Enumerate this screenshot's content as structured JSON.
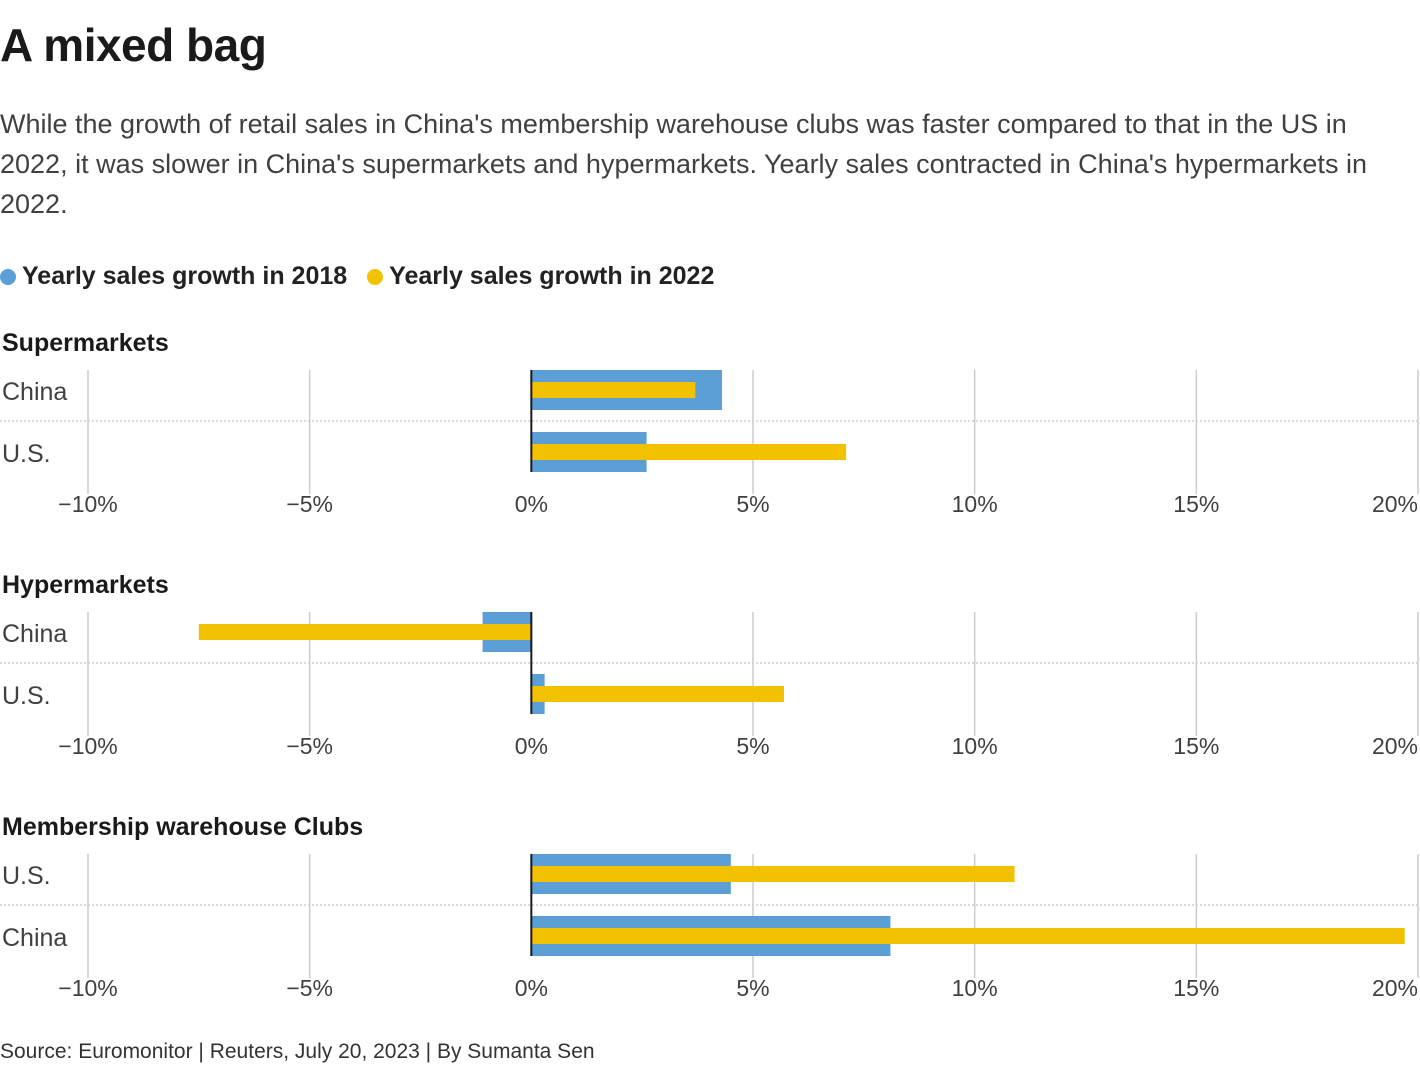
{
  "title": "A mixed bag",
  "subtitle": "While the growth of retail sales in China's membership warehouse clubs was faster compared to that in the US in 2022, it was slower in China's supermarkets and hypermarkets. Yearly sales contracted in China's hypermarkets in 2022.",
  "legend": [
    {
      "label": "Yearly sales growth in 2018",
      "color": "#5b9fd6"
    },
    {
      "label": "Yearly sales growth in 2022",
      "color": "#f2c200"
    }
  ],
  "source": "Source: Euromonitor | Reuters, July 20, 2023 | By Sumanta Sen",
  "chart_data": [
    {
      "type": "bar",
      "orientation": "horizontal",
      "title": "Supermarkets",
      "categories": [
        "China",
        "U.S."
      ],
      "series": [
        {
          "name": "Yearly sales growth in 2018",
          "values": [
            4.3,
            2.6
          ]
        },
        {
          "name": "Yearly sales growth in 2022",
          "values": [
            3.7,
            7.1
          ]
        }
      ],
      "xlim": [
        -10,
        20
      ],
      "ticks": [
        -10,
        -5,
        0,
        5,
        10,
        15,
        20
      ],
      "tick_labels": [
        "−10%",
        "−5%",
        "0%",
        "5%",
        "10%",
        "15%",
        "20%"
      ]
    },
    {
      "type": "bar",
      "orientation": "horizontal",
      "title": "Hypermarkets",
      "categories": [
        "China",
        "U.S."
      ],
      "series": [
        {
          "name": "Yearly sales growth in 2018",
          "values": [
            -1.1,
            0.3
          ]
        },
        {
          "name": "Yearly sales growth in 2022",
          "values": [
            -7.5,
            5.7
          ]
        }
      ],
      "xlim": [
        -10,
        20
      ],
      "ticks": [
        -10,
        -5,
        0,
        5,
        10,
        15,
        20
      ],
      "tick_labels": [
        "−10%",
        "−5%",
        "0%",
        "5%",
        "10%",
        "15%",
        "20%"
      ]
    },
    {
      "type": "bar",
      "orientation": "horizontal",
      "title": "Membership warehouse Clubs",
      "categories": [
        "U.S.",
        "China"
      ],
      "series": [
        {
          "name": "Yearly sales growth in 2018",
          "values": [
            4.5,
            8.1
          ]
        },
        {
          "name": "Yearly sales growth in 2022",
          "values": [
            10.9,
            19.7
          ]
        }
      ],
      "xlim": [
        -10,
        20
      ],
      "ticks": [
        -10,
        -5,
        0,
        5,
        10,
        15,
        20
      ],
      "tick_labels": [
        "−10%",
        "−5%",
        "0%",
        "5%",
        "10%",
        "15%",
        "20%"
      ]
    }
  ]
}
